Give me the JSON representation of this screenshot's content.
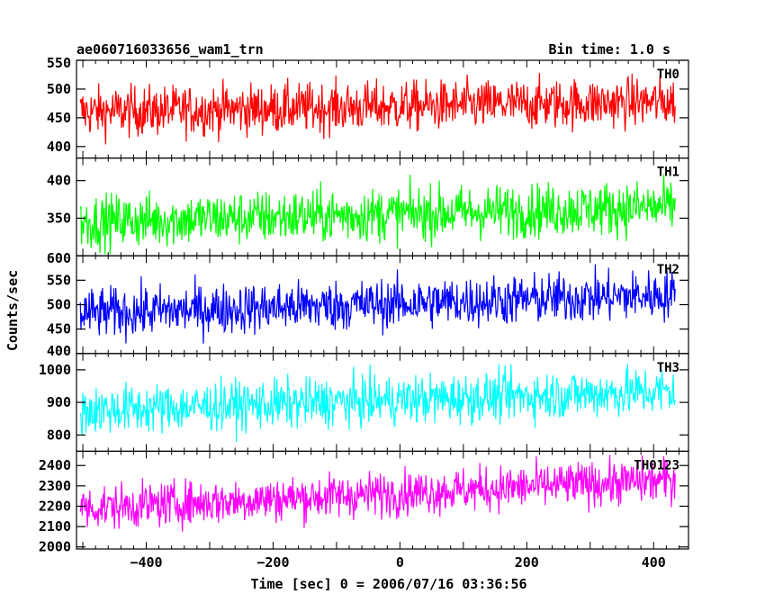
{
  "header": {
    "source_name": "ae060716033656_wam1_trn",
    "bin_time": "Bin time: 1.0 s"
  },
  "chart_data": {
    "type": "line",
    "title": "ae060716033656_wam1_trn",
    "xlabel": "Time [sec] 0 = 2006/07/16 03:36:56",
    "ylabel": "Counts/sec",
    "xlim": [
      -510,
      455
    ],
    "x_start": -504,
    "x_end": 434,
    "x_step": 1,
    "x_ticks": [
      -400,
      -200,
      0,
      200,
      400
    ],
    "x_tick_labels": [
      "−400",
      "−200",
      "0",
      "200",
      "400"
    ],
    "grid": false,
    "panels": [
      {
        "name": "TH0",
        "color": "#ff0000",
        "ylim": [
          380,
          550
        ],
        "y_ticks": [
          400,
          450,
          500,
          550
        ],
        "mean_start": 460,
        "mean_end": 478,
        "noise": 22,
        "min": 382,
        "max": 550
      },
      {
        "name": "TH1",
        "color": "#00ff00",
        "ylim": [
          300,
          430
        ],
        "y_ticks": [
          350,
          400
        ],
        "mean_start": 345,
        "mean_end": 365,
        "noise": 18,
        "min": 302,
        "max": 428
      },
      {
        "name": "TH2",
        "color": "#0000ff",
        "ylim": [
          400,
          600
        ],
        "y_ticks": [
          400,
          450,
          500,
          550,
          600
        ],
        "mean_start": 482,
        "mean_end": 520,
        "noise": 26,
        "min": 402,
        "max": 598
      },
      {
        "name": "TH3",
        "color": "#00ffff",
        "ylim": [
          750,
          1050
        ],
        "y_ticks": [
          800,
          900,
          1000
        ],
        "mean_start": 875,
        "mean_end": 935,
        "noise": 38,
        "min": 755,
        "max": 1040
      },
      {
        "name": "TH0123",
        "color": "#ff00ff",
        "ylim": [
          1990,
          2470
        ],
        "y_ticks": [
          2000,
          2100,
          2200,
          2300,
          2400
        ],
        "mean_start": 2190,
        "mean_end": 2330,
        "noise": 55,
        "min": 1995,
        "max": 2465
      }
    ]
  }
}
